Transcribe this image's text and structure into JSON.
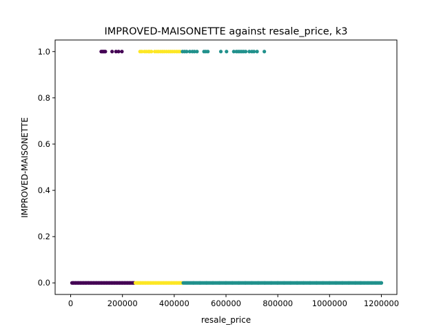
{
  "chart_data": {
    "type": "scatter",
    "title": "IMPROVED-MAISONETTE against resale_price, k3",
    "xlabel": "resale_price",
    "ylabel": "IMPROVED-MAISONETTE",
    "xlim": [
      -60000,
      1260000
    ],
    "ylim": [
      -0.05,
      1.05
    ],
    "xticks": [
      0,
      200000,
      400000,
      600000,
      800000,
      1000000,
      1200000
    ],
    "xtick_labels": [
      "0",
      "200000",
      "400000",
      "600000",
      "800000",
      "1000000",
      "1200000"
    ],
    "yticks": [
      0.0,
      0.2,
      0.4,
      0.6,
      0.8,
      1.0
    ],
    "ytick_labels": [
      "0.0",
      "0.2",
      "0.4",
      "0.6",
      "0.8",
      "1.0"
    ],
    "grid": false,
    "legend": "none",
    "colors": [
      "#440154",
      "#fde725",
      "#21918c"
    ],
    "series": [
      {
        "color": "#440154",
        "x_at_0": [
          5000,
          10000,
          20000,
          30000,
          40000,
          50000,
          60000,
          70000,
          80000,
          90000,
          100000,
          110000,
          120000,
          130000,
          140000,
          150000,
          160000,
          170000,
          180000,
          190000,
          200000,
          210000,
          220000,
          230000,
          240000,
          245000
        ],
        "x_at_1": [
          118000,
          122000,
          126000,
          130000,
          134000,
          160000,
          175000,
          185000,
          198000
        ]
      },
      {
        "color": "#fde725",
        "x_at_0": [
          250000,
          260000,
          270000,
          280000,
          290000,
          300000,
          310000,
          320000,
          330000,
          340000,
          350000,
          360000,
          370000,
          380000,
          390000,
          400000,
          410000,
          420000,
          430000
        ],
        "x_at_1": [
          268000,
          275000,
          285000,
          292000,
          300000,
          305000,
          312000,
          325000,
          333000,
          340000,
          348000,
          355000,
          362000,
          370000,
          378000,
          385000,
          392000,
          400000,
          408000,
          415000,
          422000
        ]
      },
      {
        "color": "#21918c",
        "x_at_0": [
          435000,
          450000,
          475000,
          500000,
          525000,
          550000,
          575000,
          600000,
          625000,
          650000,
          675000,
          700000,
          725000,
          750000,
          775000,
          800000,
          825000,
          850000,
          875000,
          900000,
          925000,
          950000,
          975000,
          1000000,
          1025000,
          1050000,
          1075000,
          1100000,
          1120000,
          1135000,
          1150000,
          1165000,
          1180000,
          1200000
        ],
        "x_at_1": [
          432000,
          440000,
          448000,
          460000,
          470000,
          478000,
          488000,
          515000,
          522000,
          530000,
          580000,
          602000,
          630000,
          640000,
          647000,
          654000,
          661000,
          668000,
          676000,
          690000,
          700000,
          708000,
          720000,
          748000
        ]
      }
    ]
  }
}
